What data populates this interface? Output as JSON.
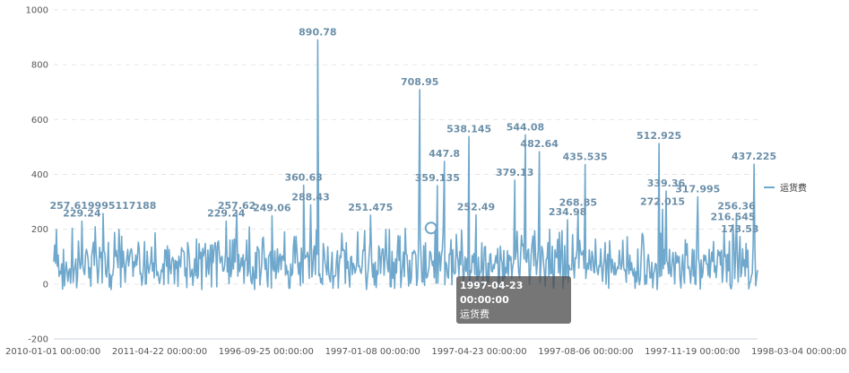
{
  "legend": {
    "label": "运货费"
  },
  "tooltip": {
    "date": "1997-04-23 00:00:00",
    "series": "运货费",
    "value": "204.47"
  },
  "colors": {
    "series": "#6fa8cc",
    "grid": "#e6e6e6",
    "axis": "#c8d6e0"
  },
  "chart_data": {
    "type": "line",
    "title": "",
    "xlabel": "",
    "ylabel": "",
    "ylim": [
      -200,
      1000
    ],
    "yticks": [
      -200,
      0,
      200,
      400,
      600,
      800,
      1000
    ],
    "xticks": [
      "2010-01-01 00:00:00",
      "2011-04-22 00:00:00",
      "1996-09-25 00:00:00",
      "1997-01-08 00:00:00",
      "1997-04-23 00:00:00",
      "1997-08-06 00:00:00",
      "1997-11-19 00:00:00",
      "1998-03-04 00:00:00"
    ],
    "grid": "horizontal-dashed",
    "legend_position": "right",
    "series": [
      {
        "name": "运货费",
        "peaks": [
          {
            "index": 0.07,
            "value": 257.619995117188,
            "label": "257.619995117188"
          },
          {
            "index": 0.04,
            "value": 229.24,
            "label": "229.24"
          },
          {
            "index": 0.245,
            "value": 229.24,
            "label": "229.24"
          },
          {
            "index": 0.26,
            "value": 257.62,
            "label": "257.62"
          },
          {
            "index": 0.31,
            "value": 249.06,
            "label": "249.06"
          },
          {
            "index": 0.355,
            "value": 360.63,
            "label": "360.63"
          },
          {
            "index": 0.365,
            "value": 288.43,
            "label": "288.43"
          },
          {
            "index": 0.375,
            "value": 890.78,
            "label": "890.78"
          },
          {
            "index": 0.45,
            "value": 251.475,
            "label": "251.475"
          },
          {
            "index": 0.52,
            "value": 708.95,
            "label": "708.95"
          },
          {
            "index": 0.555,
            "value": 447.8,
            "label": "447.8"
          },
          {
            "index": 0.545,
            "value": 359.135,
            "label": "359.135"
          },
          {
            "index": 0.59,
            "value": 538.145,
            "label": "538.145"
          },
          {
            "index": 0.6,
            "value": 252.49,
            "label": "252.49"
          },
          {
            "index": 0.655,
            "value": 379.13,
            "label": "379.13"
          },
          {
            "index": 0.67,
            "value": 544.08,
            "label": "544.08"
          },
          {
            "index": 0.69,
            "value": 482.64,
            "label": "482.64"
          },
          {
            "index": 0.73,
            "value": 234.98,
            "label": "234.98"
          },
          {
            "index": 0.745,
            "value": 268.85,
            "label": "268.85"
          },
          {
            "index": 0.755,
            "value": 435.535,
            "label": "435.535"
          },
          {
            "index": 0.86,
            "value": 512.925,
            "label": "512.925"
          },
          {
            "index": 0.865,
            "value": 272.015,
            "label": "272.015"
          },
          {
            "index": 0.87,
            "value": 339.36,
            "label": "339.36"
          },
          {
            "index": 0.915,
            "value": 317.995,
            "label": "317.995"
          },
          {
            "index": 0.97,
            "value": 256.36,
            "label": "256.36"
          },
          {
            "index": 0.965,
            "value": 216.545,
            "label": "216.545"
          },
          {
            "index": 0.975,
            "value": 173.53,
            "label": "173.53"
          },
          {
            "index": 0.995,
            "value": 437.225,
            "label": "437.225"
          }
        ],
        "baseline_range": [
          0,
          200
        ]
      }
    ],
    "highlight": {
      "x": "1997-04-23 00:00:00",
      "value": 204.47
    }
  }
}
